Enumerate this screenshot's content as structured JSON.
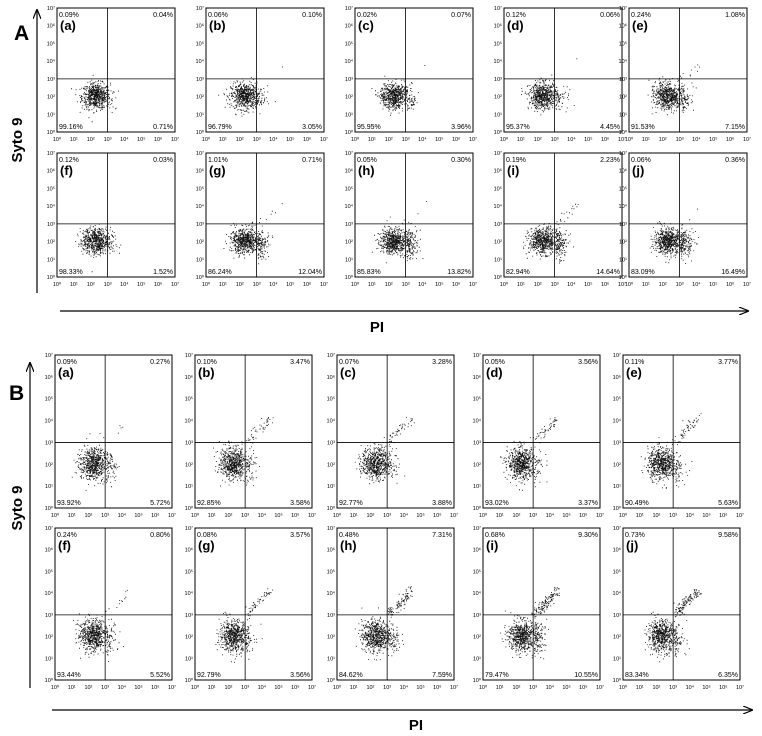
{
  "figure": {
    "sections": [
      {
        "label": "A",
        "y_axis_label": "Syto 9",
        "x_axis_label": "PI"
      },
      {
        "label": "B",
        "y_axis_label": "Syto 9",
        "x_axis_label": "PI"
      }
    ]
  },
  "chart_data": [
    {
      "type": "scatter",
      "section": "A",
      "x_scale": "log",
      "y_scale": "log",
      "xlim": [
        1,
        10000000
      ],
      "ylim": [
        1,
        10000000
      ],
      "tick_labels": [
        "10⁰",
        "10¹",
        "10²",
        "10³",
        "10⁴",
        "10⁵",
        "10⁶",
        "10⁷"
      ],
      "quadrant_gate": {
        "x": 1000,
        "y": 1000
      },
      "panels": [
        {
          "id": "(a)",
          "ul": "0.09%",
          "ur": "0.04%",
          "ll": "99.16%",
          "lr": "0.71%"
        },
        {
          "id": "(b)",
          "ul": "0.06%",
          "ur": "0.10%",
          "ll": "96.79%",
          "lr": "3.05%"
        },
        {
          "id": "(c)",
          "ul": "0.02%",
          "ur": "0.07%",
          "ll": "95.95%",
          "lr": "3.96%"
        },
        {
          "id": "(d)",
          "ul": "0.12%",
          "ur": "0.06%",
          "ll": "95.37%",
          "lr": "4.45%"
        },
        {
          "id": "(e)",
          "ul": "0.24%",
          "ur": "1.08%",
          "ll": "91.53%",
          "lr": "7.15%"
        },
        {
          "id": "(f)",
          "ul": "0.12%",
          "ur": "0.03%",
          "ll": "98.33%",
          "lr": "1.52%"
        },
        {
          "id": "(g)",
          "ul": "1.01%",
          "ur": "0.71%",
          "ll": "86.24%",
          "lr": "12.04%"
        },
        {
          "id": "(h)",
          "ul": "0.05%",
          "ur": "0.30%",
          "ll": "85.83%",
          "lr": "13.82%"
        },
        {
          "id": "(i)",
          "ul": "0.19%",
          "ur": "2.23%",
          "ll": "82.94%",
          "lr": "14.64%"
        },
        {
          "id": "(j)",
          "ul": "0.06%",
          "ur": "0.36%",
          "ll": "83.09%",
          "lr": "16.49%"
        }
      ]
    },
    {
      "type": "scatter",
      "section": "B",
      "x_scale": "log",
      "y_scale": "log",
      "xlim": [
        1,
        10000000
      ],
      "ylim": [
        1,
        10000000
      ],
      "tick_labels": [
        "10⁰",
        "10¹",
        "10²",
        "10³",
        "10⁴",
        "10⁵",
        "10⁶",
        "10⁷"
      ],
      "quadrant_gate": {
        "x": 1000,
        "y": 1000
      },
      "panels": [
        {
          "id": "(a)",
          "ul": "0.09%",
          "ur": "0.27%",
          "ll": "93.92%",
          "lr": "5.72%"
        },
        {
          "id": "(b)",
          "ul": "0.10%",
          "ur": "3.47%",
          "ll": "92.85%",
          "lr": "3.58%"
        },
        {
          "id": "(c)",
          "ul": "0.07%",
          "ur": "3.28%",
          "ll": "92.77%",
          "lr": "3.88%"
        },
        {
          "id": "(d)",
          "ul": "0.05%",
          "ur": "3.56%",
          "ll": "93.02%",
          "lr": "3.37%"
        },
        {
          "id": "(e)",
          "ul": "0.11%",
          "ur": "3.77%",
          "ll": "90.49%",
          "lr": "5.63%"
        },
        {
          "id": "(f)",
          "ul": "0.24%",
          "ur": "0.80%",
          "ll": "93.44%",
          "lr": "5.52%"
        },
        {
          "id": "(g)",
          "ul": "0.08%",
          "ur": "3.57%",
          "ll": "92.79%",
          "lr": "3.56%"
        },
        {
          "id": "(h)",
          "ul": "0.48%",
          "ur": "7.31%",
          "ll": "84.62%",
          "lr": "7.59%"
        },
        {
          "id": "(i)",
          "ul": "0.68%",
          "ur": "9.30%",
          "ll": "79.47%",
          "lr": "10.55%"
        },
        {
          "id": "(j)",
          "ul": "0.73%",
          "ur": "9.58%",
          "ll": "83.34%",
          "lr": "6.35%"
        }
      ]
    }
  ]
}
